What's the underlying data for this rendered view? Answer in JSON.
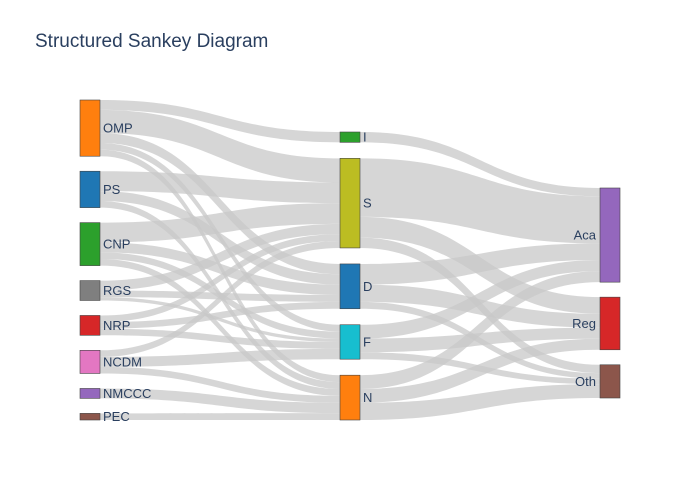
{
  "title": "Structured Sankey Diagram",
  "nodes": [
    {
      "id": "OMP",
      "label": "OMP",
      "color": "#ff7f0e",
      "column": 0
    },
    {
      "id": "PS",
      "label": "PS",
      "color": "#1f77b4",
      "column": 0
    },
    {
      "id": "CNP",
      "label": "CNP",
      "color": "#2ca02c",
      "column": 0
    },
    {
      "id": "RGS",
      "label": "RGS",
      "color": "#7f7f7f",
      "column": 0
    },
    {
      "id": "NRP",
      "label": "NRP",
      "color": "#d62728",
      "column": 0
    },
    {
      "id": "NCDM",
      "label": "NCDM",
      "color": "#e377c2",
      "column": 0
    },
    {
      "id": "NMCCC",
      "label": "NMCCC",
      "color": "#9467bd",
      "column": 0
    },
    {
      "id": "PEC",
      "label": "PEC",
      "color": "#8c564b",
      "column": 0
    },
    {
      "id": "I",
      "label": "I",
      "color": "#2ca02c",
      "column": 1
    },
    {
      "id": "S",
      "label": "S",
      "color": "#bcbd22",
      "column": 1
    },
    {
      "id": "D",
      "label": "D",
      "color": "#1f77b4",
      "column": 1
    },
    {
      "id": "F",
      "label": "F",
      "color": "#17becf",
      "column": 1
    },
    {
      "id": "N",
      "label": "N",
      "color": "#ff7f0e",
      "column": 1
    },
    {
      "id": "Aca",
      "label": "Aca",
      "color": "#9467bd",
      "column": 2
    },
    {
      "id": "Reg",
      "label": "Reg",
      "color": "#d62728",
      "column": 2
    },
    {
      "id": "Oth",
      "label": "Oth",
      "color": "#8c564b",
      "column": 2
    }
  ],
  "links": [
    {
      "source": "OMP",
      "target": "I",
      "value": 3
    },
    {
      "source": "OMP",
      "target": "S",
      "value": 7
    },
    {
      "source": "OMP",
      "target": "D",
      "value": 3
    },
    {
      "source": "OMP",
      "target": "F",
      "value": 2
    },
    {
      "source": "OMP",
      "target": "N",
      "value": 2
    },
    {
      "source": "PS",
      "target": "S",
      "value": 6
    },
    {
      "source": "PS",
      "target": "D",
      "value": 3
    },
    {
      "source": "PS",
      "target": "N",
      "value": 2
    },
    {
      "source": "CNP",
      "target": "S",
      "value": 6
    },
    {
      "source": "CNP",
      "target": "D",
      "value": 3
    },
    {
      "source": "CNP",
      "target": "F",
      "value": 2
    },
    {
      "source": "CNP",
      "target": "N",
      "value": 2
    },
    {
      "source": "RGS",
      "target": "S",
      "value": 3
    },
    {
      "source": "RGS",
      "target": "D",
      "value": 2
    },
    {
      "source": "RGS",
      "target": "F",
      "value": 1
    },
    {
      "source": "NRP",
      "target": "S",
      "value": 2
    },
    {
      "source": "NRP",
      "target": "D",
      "value": 2
    },
    {
      "source": "NRP",
      "target": "F",
      "value": 2
    },
    {
      "source": "NCDM",
      "target": "S",
      "value": 2
    },
    {
      "source": "NCDM",
      "target": "F",
      "value": 3
    },
    {
      "source": "NCDM",
      "target": "N",
      "value": 2
    },
    {
      "source": "NMCCC",
      "target": "N",
      "value": 3
    },
    {
      "source": "PEC",
      "target": "N",
      "value": 2
    },
    {
      "source": "I",
      "target": "Aca",
      "value": 3
    },
    {
      "source": "S",
      "target": "Aca",
      "value": 17
    },
    {
      "source": "S",
      "target": "Reg",
      "value": 6
    },
    {
      "source": "S",
      "target": "Oth",
      "value": 3
    },
    {
      "source": "D",
      "target": "Aca",
      "value": 6
    },
    {
      "source": "D",
      "target": "Reg",
      "value": 5
    },
    {
      "source": "D",
      "target": "Oth",
      "value": 2
    },
    {
      "source": "F",
      "target": "Aca",
      "value": 4
    },
    {
      "source": "F",
      "target": "Reg",
      "value": 4
    },
    {
      "source": "F",
      "target": "Oth",
      "value": 2
    },
    {
      "source": "N",
      "target": "Aca",
      "value": 4
    },
    {
      "source": "N",
      "target": "Reg",
      "value": 4
    },
    {
      "source": "N",
      "target": "Oth",
      "value": 5
    }
  ]
}
